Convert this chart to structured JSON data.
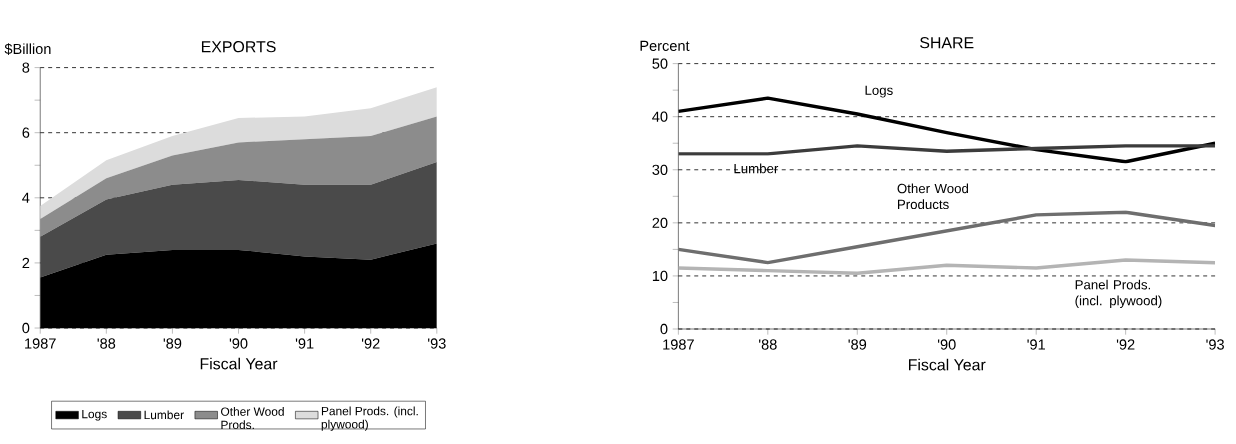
{
  "chart_data": [
    {
      "type": "area",
      "title": "EXPORTS",
      "ylabel": "$Billion",
      "xlabel": "Fiscal Year",
      "stacked": true,
      "x": [
        1987,
        1988,
        1989,
        1990,
        1991,
        1992,
        1993
      ],
      "series": [
        {
          "name": "Logs",
          "color": "#000000",
          "values": [
            1.55,
            2.25,
            2.4,
            2.4,
            2.2,
            2.1,
            2.6
          ]
        },
        {
          "name": "Lumber",
          "color": "#4a4a4a",
          "values": [
            1.25,
            1.7,
            2.0,
            2.15,
            2.2,
            2.3,
            2.5
          ]
        },
        {
          "name": "Other Wood Prods.",
          "color": "#8c8c8c",
          "values": [
            0.55,
            0.65,
            0.9,
            1.15,
            1.4,
            1.5,
            1.4
          ]
        },
        {
          "name": "Panel Prods. (incl. plywood)",
          "color": "#dcdcdc",
          "values": [
            0.4,
            0.55,
            0.6,
            0.75,
            0.7,
            0.85,
            0.9
          ]
        }
      ],
      "xlim": [
        1987,
        1993
      ],
      "ylim": [
        0,
        8
      ],
      "xticks": [
        1987,
        {
          "value": 1988,
          "label": "'88"
        },
        {
          "value": 1989,
          "label": "'89"
        },
        {
          "value": 1990,
          "label": "'90"
        },
        {
          "value": 1991,
          "label": "'91"
        },
        {
          "value": 1992,
          "label": "'92"
        },
        {
          "value": 1993,
          "label": "'93"
        }
      ],
      "yticks": [
        0,
        {
          "value": 1,
          "label": null
        },
        2,
        {
          "value": 3,
          "label": null
        },
        4,
        {
          "value": 5,
          "label": null
        },
        6,
        {
          "value": 7,
          "label": null
        },
        8
      ],
      "grid": "y",
      "legend": "bottom"
    },
    {
      "type": "line",
      "title": "SHARE",
      "ylabel": "Percent",
      "xlabel": "Fiscal Year",
      "x": [
        1987,
        1988,
        1989,
        1990,
        1991,
        1992,
        1993
      ],
      "series": [
        {
          "name": "Logs",
          "color": "#000000",
          "values": [
            41,
            43.5,
            40.5,
            37,
            33.8,
            31.5,
            35
          ]
        },
        {
          "name": "Lumber",
          "color": "#3c3c3c",
          "values": [
            33,
            33,
            34.5,
            33.5,
            34,
            34.5,
            34.5
          ]
        },
        {
          "name": "Other Wood Products",
          "color": "#6e6e6e",
          "values": [
            15,
            12.5,
            15.5,
            18.5,
            21.5,
            22,
            19.5
          ]
        },
        {
          "name": "Panel Prods. (incl. plywood)",
          "color": "#b4b4b4",
          "values": [
            11.5,
            11,
            10.5,
            12,
            11.5,
            13,
            12.5
          ]
        }
      ],
      "xlim": [
        1987,
        1993
      ],
      "ylim": [
        0,
        50
      ],
      "xticks": [
        1987,
        {
          "value": 1988,
          "label": "'88"
        },
        {
          "value": 1989,
          "label": "'89"
        },
        {
          "value": 1990,
          "label": "'90"
        },
        {
          "value": 1991,
          "label": "'91"
        },
        {
          "value": 1992,
          "label": "'92"
        },
        {
          "value": 1993,
          "label": "'93"
        }
      ],
      "yticks": [
        0,
        {
          "value": 5,
          "label": null
        },
        10,
        {
          "value": 15,
          "label": null
        },
        20,
        {
          "value": 25,
          "label": null
        },
        30,
        {
          "value": 35,
          "label": null
        },
        40,
        {
          "value": 45,
          "label": null
        },
        50
      ],
      "grid": "y"
    }
  ]
}
